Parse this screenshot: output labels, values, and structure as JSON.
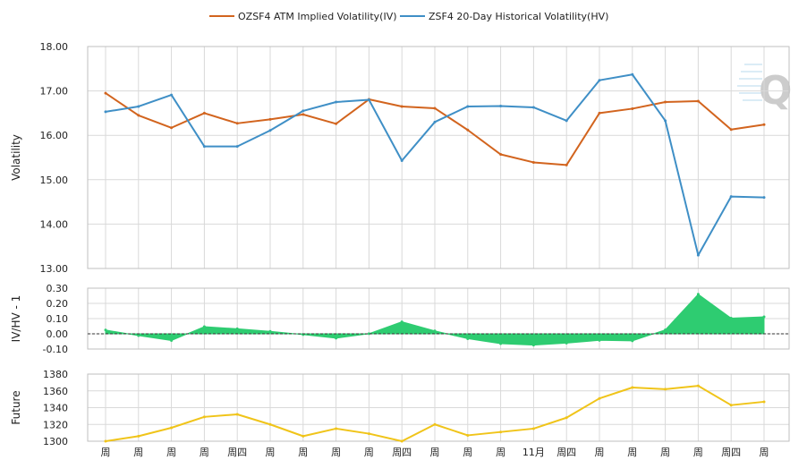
{
  "chart_data": [
    {
      "type": "line",
      "ylabel": "Volatility",
      "ylim": [
        13.0,
        18.0
      ],
      "yticks": [
        "18.00",
        "17.00",
        "16.00",
        "15.00",
        "14.00",
        "13.00"
      ],
      "legend_position": "top-center",
      "series": [
        {
          "name": "OZSF4 ATM Implied Volatility(IV)",
          "color": "#d2641e",
          "values": [
            16.95,
            16.45,
            16.17,
            16.5,
            16.27,
            16.36,
            16.47,
            16.26,
            16.81,
            16.65,
            16.61,
            16.12,
            15.57,
            15.39,
            15.33,
            16.5,
            16.6,
            16.75,
            16.77,
            16.13,
            16.24
          ]
        },
        {
          "name": "ZSF4 20-Day Historical Volatility(HV)",
          "color": "#3f8fc6",
          "values": [
            16.53,
            16.65,
            16.91,
            15.75,
            15.75,
            16.11,
            16.55,
            16.75,
            16.8,
            15.43,
            16.3,
            16.65,
            16.66,
            16.63,
            16.33,
            17.24,
            17.37,
            16.33,
            13.3,
            14.62,
            14.6
          ]
        }
      ]
    },
    {
      "type": "area",
      "ylabel": "IV/HV - 1",
      "ylim": [
        -0.1,
        0.3
      ],
      "yticks": [
        "0.30",
        "0.20",
        "0.10",
        "0.00",
        "-0.10"
      ],
      "zero_line": "dashed",
      "series": [
        {
          "color": "#2ecc71",
          "values": [
            0.025,
            -0.012,
            -0.044,
            0.047,
            0.033,
            0.016,
            -0.005,
            -0.029,
            0.001,
            0.079,
            0.019,
            -0.032,
            -0.065,
            -0.074,
            -0.061,
            -0.043,
            -0.046,
            0.026,
            0.26,
            0.103,
            0.112
          ]
        }
      ]
    },
    {
      "type": "line",
      "ylabel": "Future",
      "ylim": [
        1300,
        1380
      ],
      "yticks": [
        "1380",
        "1360",
        "1340",
        "1320",
        "1300"
      ],
      "series": [
        {
          "color": "#f0c419",
          "values": [
            1300,
            1306,
            1316,
            1329,
            1332,
            1320,
            1306,
            1315,
            1309,
            1300,
            1320,
            1307,
            1311,
            1315,
            1328,
            1351,
            1364,
            1362,
            1366,
            1343,
            1347
          ]
        }
      ]
    }
  ],
  "x_labels": [
    "周",
    "周",
    "周",
    "周",
    "周四",
    "周",
    "周",
    "周",
    "周",
    "周四",
    "周",
    "周",
    "周",
    "11月",
    "周四",
    "周",
    "周",
    "周",
    "周",
    "周四",
    "周"
  ],
  "grid": true,
  "watermark_icon": "q-logo-icon"
}
